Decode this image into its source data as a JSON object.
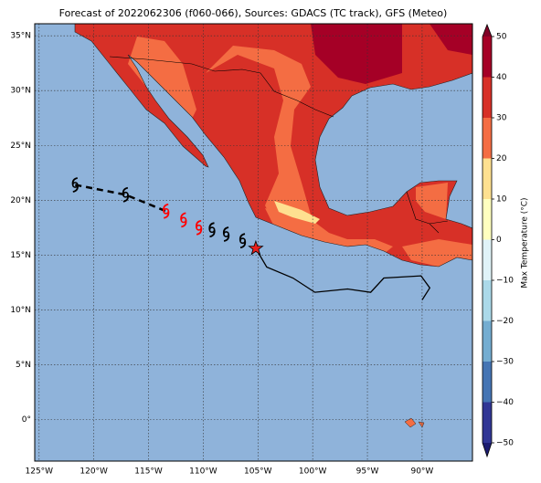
{
  "chart_data": {
    "type": "map",
    "title": "Forecast of 2022062306 (f060-066), Sources: GDACS (TC track), GFS (Meteo)",
    "xlim": [
      -125.4,
      -85.4
    ],
    "ylim": [
      -3.8,
      36.1
    ],
    "xticks": [
      {
        "value": -125,
        "label": "125°W"
      },
      {
        "value": -120,
        "label": "120°W"
      },
      {
        "value": -115,
        "label": "115°W"
      },
      {
        "value": -110,
        "label": "110°W"
      },
      {
        "value": -105,
        "label": "105°W"
      },
      {
        "value": -100,
        "label": "100°W"
      },
      {
        "value": -95,
        "label": "95°W"
      },
      {
        "value": -90,
        "label": "90°W"
      }
    ],
    "yticks": [
      {
        "value": 0,
        "label": "0°"
      },
      {
        "value": 5,
        "label": "5°N"
      },
      {
        "value": 10,
        "label": "10°N"
      },
      {
        "value": 15,
        "label": "15°N"
      },
      {
        "value": 20,
        "label": "20°N"
      },
      {
        "value": 25,
        "label": "25°N"
      },
      {
        "value": 30,
        "label": "30°N"
      },
      {
        "value": 35,
        "label": "35°N"
      }
    ],
    "grid": true,
    "storm_positions": [
      {
        "lon": -121.7,
        "lat": 21.4,
        "color": "#000000"
      },
      {
        "lon": -117.1,
        "lat": 20.5,
        "color": "#000000"
      },
      {
        "lon": -113.4,
        "lat": 19.0,
        "color": "#ff0000"
      },
      {
        "lon": -111.8,
        "lat": 18.2,
        "color": "#ff0000"
      },
      {
        "lon": -110.4,
        "lat": 17.5,
        "color": "#ff0000"
      },
      {
        "lon": -109.2,
        "lat": 17.3,
        "color": "#000000"
      },
      {
        "lon": -107.9,
        "lat": 16.9,
        "color": "#000000"
      },
      {
        "lon": -106.4,
        "lat": 16.3,
        "color": "#000000"
      }
    ],
    "current_position": {
      "lon": -105.2,
      "lat": 15.6,
      "color": "#e8201c"
    },
    "forecast_track": {
      "lon": [
        -105.2,
        -104.2,
        -101.8,
        -99.8,
        -96.8,
        -94.7,
        -93.5,
        -90.1,
        -89.3,
        -90.0
      ],
      "lat": [
        15.6,
        13.9,
        12.9,
        11.6,
        11.9,
        11.6,
        12.9,
        13.1,
        12.0,
        10.9
      ]
    },
    "colorbar": {
      "label": "Max Temperature (°C)",
      "ticks": [
        {
          "value": -50,
          "label": "−50"
        },
        {
          "value": -40,
          "label": "−40"
        },
        {
          "value": -30,
          "label": "−30"
        },
        {
          "value": -20,
          "label": "−20"
        },
        {
          "value": -10,
          "label": "−10"
        },
        0,
        10,
        20,
        30,
        40,
        50
      ],
      "colors": [
        "#313695",
        "#4575b4",
        "#74add1",
        "#abd9e9",
        "#e0f3f8",
        "#ffffbf",
        "#fee090",
        "#f46d43",
        "#d73027",
        "#a50026"
      ],
      "under_color": "#1c1c70",
      "over_color": "#800026"
    }
  }
}
